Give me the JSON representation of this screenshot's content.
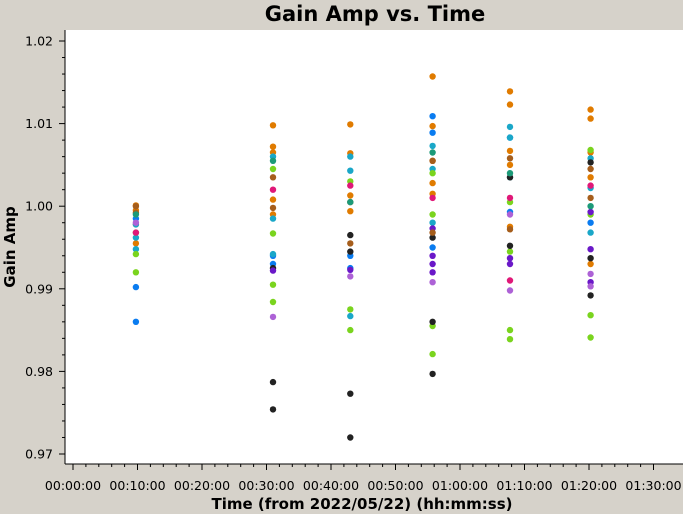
{
  "chart_data": {
    "type": "scatter",
    "title": "Gain Amp vs. Time",
    "xlabel": "Time (from 2022/05/22) (hh:mm:ss)",
    "ylabel": "Gain Amp",
    "xlim": [
      "00:00:00",
      "01:30:00"
    ],
    "ylim": [
      0.97,
      1.02
    ],
    "x_ticks": [
      "00:00:00",
      "00:10:00",
      "00:20:00",
      "00:30:00",
      "00:40:00",
      "00:50:00",
      "01:00:00",
      "01:10:00",
      "01:20:00",
      "01:30:00"
    ],
    "y_ticks": [
      "0.97",
      "0.98",
      "0.99",
      "1.00",
      "1.01",
      "1.02"
    ],
    "grid": false,
    "legend": "none",
    "series": [
      {
        "color": "#e07b00",
        "points": [
          [
            "00:09:45",
            1.0001
          ],
          [
            "00:09:45",
            0.9995
          ],
          [
            "00:09:45",
            0.9978
          ],
          [
            "00:09:45",
            0.9955
          ],
          [
            "00:31:00",
            1.0098
          ],
          [
            "00:31:00",
            1.0072
          ],
          [
            "00:31:00",
            1.0065
          ],
          [
            "00:31:00",
            1.0008
          ],
          [
            "00:31:00",
            0.999
          ],
          [
            "00:43:00",
            1.0099
          ],
          [
            "00:43:00",
            1.0064
          ],
          [
            "00:43:00",
            1.0013
          ],
          [
            "00:43:00",
            0.9994
          ],
          [
            "00:55:45",
            1.0157
          ],
          [
            "00:55:45",
            1.0097
          ],
          [
            "00:55:45",
            1.0055
          ],
          [
            "00:55:45",
            1.0028
          ],
          [
            "00:55:45",
            1.0015
          ],
          [
            "01:07:45",
            1.0139
          ],
          [
            "01:07:45",
            1.0123
          ],
          [
            "01:07:45",
            1.0067
          ],
          [
            "01:07:45",
            1.005
          ],
          [
            "01:07:45",
            0.9975
          ],
          [
            "01:20:15",
            1.0117
          ],
          [
            "01:20:15",
            1.0106
          ],
          [
            "01:20:15",
            1.0065
          ],
          [
            "01:20:15",
            1.0035
          ],
          [
            "01:20:15",
            0.993
          ]
        ]
      },
      {
        "color": "#0a7cf0",
        "points": [
          [
            "00:09:45",
            0.9902
          ],
          [
            "00:09:45",
            0.986
          ],
          [
            "00:09:45",
            0.9985
          ],
          [
            "00:31:00",
            0.994
          ],
          [
            "00:31:00",
            0.993
          ],
          [
            "00:43:00",
            0.994
          ],
          [
            "00:43:00",
            0.9925
          ],
          [
            "00:55:45",
            1.0109
          ],
          [
            "00:55:45",
            1.0089
          ],
          [
            "00:55:45",
            0.995
          ],
          [
            "01:07:45",
            1.0083
          ],
          [
            "01:07:45",
            0.9993
          ],
          [
            "01:20:15",
            0.998
          ]
        ]
      },
      {
        "color": "#1aa7c8",
        "points": [
          [
            "00:09:45",
            0.9978
          ],
          [
            "00:09:45",
            0.9962
          ],
          [
            "00:09:45",
            0.9948
          ],
          [
            "00:31:00",
            1.006
          ],
          [
            "00:31:00",
            0.9985
          ],
          [
            "00:31:00",
            0.9942
          ],
          [
            "00:43:00",
            1.006
          ],
          [
            "00:43:00",
            1.0043
          ],
          [
            "00:43:00",
            0.9867
          ],
          [
            "00:55:45",
            1.0073
          ],
          [
            "00:55:45",
            1.0045
          ],
          [
            "00:55:45",
            0.998
          ],
          [
            "01:07:45",
            1.0096
          ],
          [
            "01:07:45",
            1.0083
          ],
          [
            "01:07:45",
            1.0035
          ],
          [
            "01:20:15",
            1.0058
          ],
          [
            "01:20:15",
            1.0022
          ],
          [
            "01:20:15",
            0.9968
          ]
        ]
      },
      {
        "color": "#7ad41e",
        "points": [
          [
            "00:09:45",
            0.992
          ],
          [
            "00:09:45",
            0.9942
          ],
          [
            "00:09:45",
            0.9968
          ],
          [
            "00:31:00",
            0.9884
          ],
          [
            "00:31:00",
            0.9905
          ],
          [
            "00:31:00",
            0.9967
          ],
          [
            "00:31:00",
            1.0045
          ],
          [
            "00:43:00",
            0.9875
          ],
          [
            "00:43:00",
            0.985
          ],
          [
            "00:43:00",
            1.003
          ],
          [
            "00:55:45",
            0.9855
          ],
          [
            "00:55:45",
            0.9821
          ],
          [
            "00:55:45",
            0.999
          ],
          [
            "00:55:45",
            1.004
          ],
          [
            "01:07:45",
            0.985
          ],
          [
            "01:07:45",
            0.9839
          ],
          [
            "01:07:45",
            1.0005
          ],
          [
            "01:07:45",
            0.9945
          ],
          [
            "01:20:15",
            0.9868
          ],
          [
            "01:20:15",
            0.9841
          ],
          [
            "01:20:15",
            1.0068
          ],
          [
            "01:20:15",
            0.999
          ]
        ]
      },
      {
        "color": "#222222",
        "points": [
          [
            "00:31:00",
            0.9787
          ],
          [
            "00:31:00",
            0.9754
          ],
          [
            "00:31:00",
            0.9925
          ],
          [
            "00:43:00",
            0.9773
          ],
          [
            "00:43:00",
            0.972
          ],
          [
            "00:43:00",
            0.9965
          ],
          [
            "00:43:00",
            0.9945
          ],
          [
            "00:55:45",
            0.9797
          ],
          [
            "00:55:45",
            0.986
          ],
          [
            "00:55:45",
            0.9962
          ],
          [
            "01:07:45",
            1.0035
          ],
          [
            "01:07:45",
            0.9952
          ],
          [
            "01:20:15",
            0.9892
          ],
          [
            "01:20:15",
            0.9937
          ],
          [
            "01:20:15",
            1.0053
          ]
        ]
      },
      {
        "color": "#6a18c8",
        "points": [
          [
            "00:31:00",
            0.9922
          ],
          [
            "00:43:00",
            0.9923
          ],
          [
            "00:55:45",
            0.9973
          ],
          [
            "00:55:45",
            0.994
          ],
          [
            "00:55:45",
            0.993
          ],
          [
            "00:55:45",
            0.992
          ],
          [
            "01:07:45",
            0.9937
          ],
          [
            "01:07:45",
            0.993
          ],
          [
            "01:20:15",
            0.9948
          ],
          [
            "01:20:15",
            0.9908
          ],
          [
            "01:20:15",
            0.9993
          ]
        ]
      },
      {
        "color": "#ad62d6",
        "points": [
          [
            "00:09:45",
            0.998
          ],
          [
            "00:31:00",
            0.9866
          ],
          [
            "00:43:00",
            0.9915
          ],
          [
            "00:55:45",
            0.9908
          ],
          [
            "01:07:45",
            0.9898
          ],
          [
            "01:07:45",
            0.999
          ],
          [
            "01:20:15",
            0.9903
          ],
          [
            "01:20:15",
            0.9918
          ]
        ]
      },
      {
        "color": "#e01878",
        "points": [
          [
            "00:09:45",
            0.9968
          ],
          [
            "00:31:00",
            1.002
          ],
          [
            "00:43:00",
            1.0025
          ],
          [
            "00:55:45",
            1.001
          ],
          [
            "01:07:45",
            0.991
          ],
          [
            "01:07:45",
            1.001
          ],
          [
            "01:20:15",
            1.0025
          ]
        ]
      },
      {
        "color": "#a65e1c",
        "points": [
          [
            "00:09:45",
            1.0
          ],
          [
            "00:09:45",
            0.9992
          ],
          [
            "00:31:00",
            1.0035
          ],
          [
            "00:31:00",
            0.9998
          ],
          [
            "00:43:00",
            0.9955
          ],
          [
            "00:43:00",
            1.0005
          ],
          [
            "00:55:45",
            1.0055
          ],
          [
            "00:55:45",
            0.9968
          ],
          [
            "01:07:45",
            1.0058
          ],
          [
            "01:07:45",
            0.9972
          ],
          [
            "01:20:15",
            1.0045
          ],
          [
            "01:20:15",
            1.001
          ]
        ]
      },
      {
        "color": "#1c9a78",
        "points": [
          [
            "00:09:45",
            0.999
          ],
          [
            "00:31:00",
            1.0055
          ],
          [
            "00:43:00",
            1.0005
          ],
          [
            "00:55:45",
            1.0065
          ],
          [
            "01:07:45",
            1.004
          ],
          [
            "01:20:15",
            1.0
          ]
        ]
      }
    ]
  }
}
